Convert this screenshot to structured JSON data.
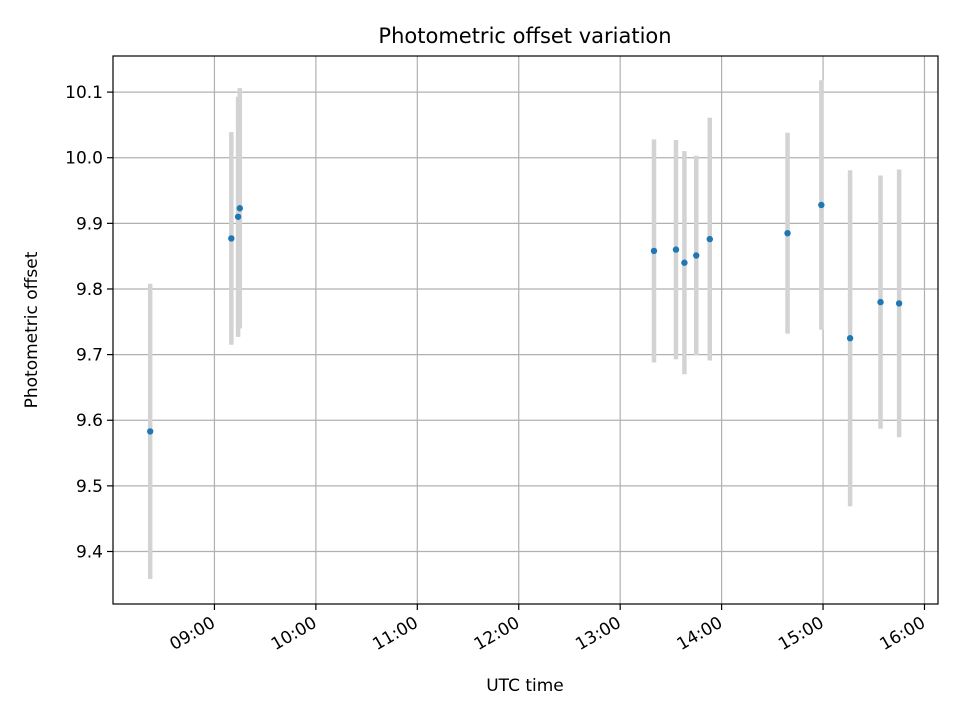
{
  "chart_data": {
    "type": "scatter",
    "title": "Photometric offset variation",
    "xlabel": "UTC time",
    "ylabel": "Photometric offset",
    "xlim": [
      "08:00",
      "16:08"
    ],
    "ylim": [
      9.32,
      10.155
    ],
    "x_ticks": [
      "09:00",
      "10:00",
      "11:00",
      "12:00",
      "13:00",
      "14:00",
      "15:00",
      "16:00"
    ],
    "y_ticks": [
      9.4,
      9.5,
      9.6,
      9.7,
      9.8,
      9.9,
      10.0,
      10.1
    ],
    "grid": true,
    "point_color": "#1f77b4",
    "errorbar_color": "#d3d3d3",
    "points": [
      {
        "x": "08:22",
        "y": 9.583,
        "err": 0.225
      },
      {
        "x": "09:10",
        "y": 9.877,
        "err": 0.162
      },
      {
        "x": "09:14",
        "y": 9.91,
        "err": 0.183
      },
      {
        "x": "09:15",
        "y": 9.923,
        "err": 0.183
      },
      {
        "x": "13:20",
        "y": 9.858,
        "err": 0.17
      },
      {
        "x": "13:33",
        "y": 9.86,
        "err": 0.167
      },
      {
        "x": "13:38",
        "y": 9.84,
        "err": 0.17
      },
      {
        "x": "13:45",
        "y": 9.851,
        "err": 0.152
      },
      {
        "x": "13:53",
        "y": 9.876,
        "err": 0.185
      },
      {
        "x": "14:39",
        "y": 9.885,
        "err": 0.153
      },
      {
        "x": "14:59",
        "y": 9.928,
        "err": 0.19
      },
      {
        "x": "15:16",
        "y": 9.725,
        "err": 0.256
      },
      {
        "x": "15:34",
        "y": 9.78,
        "err": 0.193
      },
      {
        "x": "15:45",
        "y": 9.778,
        "err": 0.204
      }
    ]
  }
}
